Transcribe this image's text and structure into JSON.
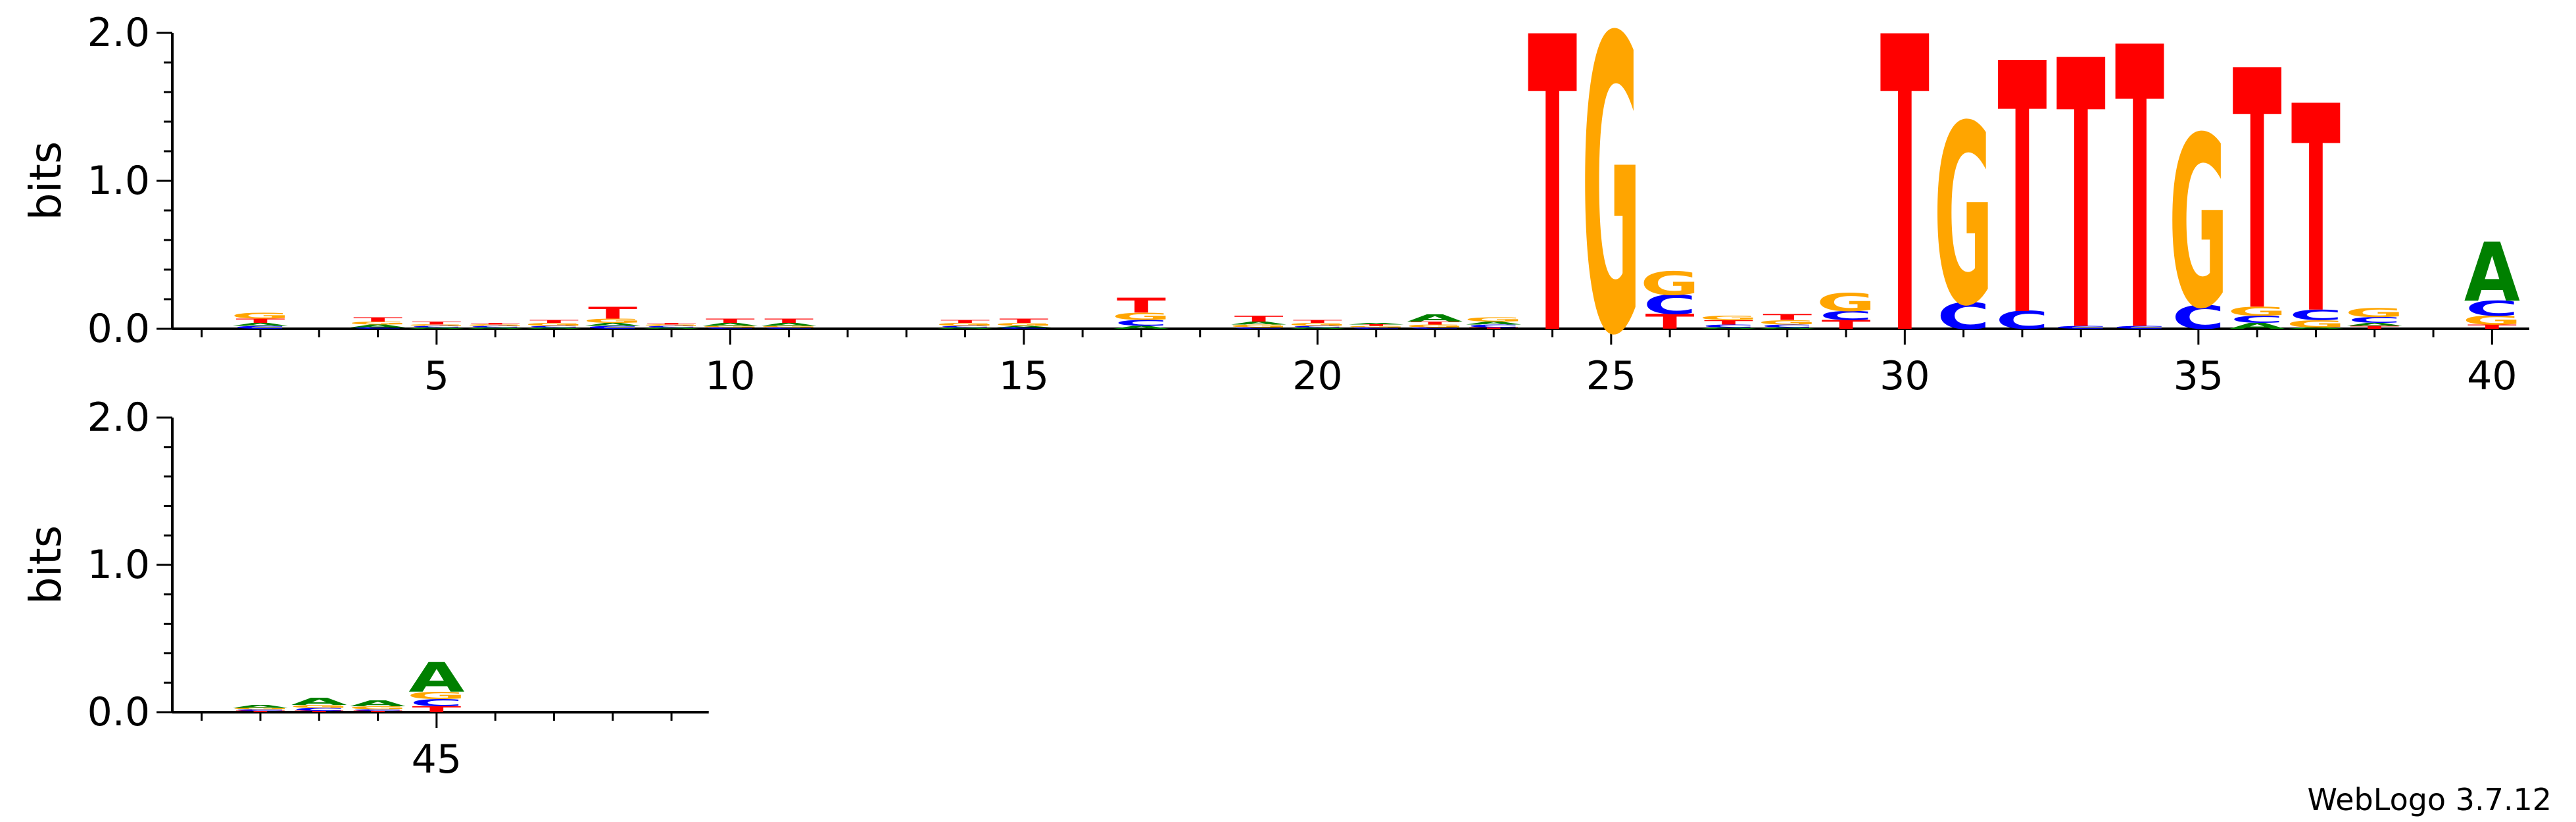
{
  "chart_data": {
    "type": "sequence_logo",
    "ylabel": "bits",
    "ylim": [
      0,
      2
    ],
    "yticks": [
      "0.0",
      "1.0",
      "2.0"
    ],
    "alphabet_colors": {
      "A": "#008000",
      "C": "#0000ff",
      "G": "#ffa500",
      "T": "#ff0000"
    },
    "rows": [
      {
        "first_position": 1,
        "last_position": 40,
        "xtick_labels": [
          "5",
          "10",
          "15",
          "20",
          "25",
          "30",
          "35",
          "40"
        ]
      },
      {
        "first_position": 41,
        "last_position": 49,
        "xtick_labels": [
          "45"
        ]
      }
    ],
    "positions": [
      {
        "pos": 1,
        "letters": []
      },
      {
        "pos": 2,
        "letters": [
          {
            "base": "C",
            "bits": 0.02
          },
          {
            "base": "A",
            "bits": 0.02
          },
          {
            "base": "T",
            "bits": 0.03
          },
          {
            "base": "G",
            "bits": 0.04
          }
        ]
      },
      {
        "pos": 3,
        "letters": []
      },
      {
        "pos": 4,
        "letters": [
          {
            "base": "C",
            "bits": 0.01
          },
          {
            "base": "A",
            "bits": 0.02
          },
          {
            "base": "G",
            "bits": 0.02
          },
          {
            "base": "T",
            "bits": 0.03
          }
        ]
      },
      {
        "pos": 5,
        "letters": [
          {
            "base": "A",
            "bits": 0.01
          },
          {
            "base": "C",
            "bits": 0.01
          },
          {
            "base": "G",
            "bits": 0.01
          },
          {
            "base": "T",
            "bits": 0.02
          }
        ]
      },
      {
        "pos": 6,
        "letters": [
          {
            "base": "A",
            "bits": 0.01
          },
          {
            "base": "C",
            "bits": 0.01
          },
          {
            "base": "G",
            "bits": 0.01
          },
          {
            "base": "T",
            "bits": 0.01
          }
        ]
      },
      {
        "pos": 7,
        "letters": [
          {
            "base": "A",
            "bits": 0.01
          },
          {
            "base": "C",
            "bits": 0.01
          },
          {
            "base": "G",
            "bits": 0.02
          },
          {
            "base": "T",
            "bits": 0.02
          }
        ]
      },
      {
        "pos": 8,
        "letters": [
          {
            "base": "C",
            "bits": 0.02
          },
          {
            "base": "A",
            "bits": 0.02
          },
          {
            "base": "G",
            "bits": 0.03
          },
          {
            "base": "T",
            "bits": 0.08
          }
        ]
      },
      {
        "pos": 9,
        "letters": [
          {
            "base": "A",
            "bits": 0.01
          },
          {
            "base": "C",
            "bits": 0.01
          },
          {
            "base": "G",
            "bits": 0.01
          },
          {
            "base": "T",
            "bits": 0.01
          }
        ]
      },
      {
        "pos": 10,
        "letters": [
          {
            "base": "C",
            "bits": 0.01
          },
          {
            "base": "G",
            "bits": 0.01
          },
          {
            "base": "A",
            "bits": 0.02
          },
          {
            "base": "T",
            "bits": 0.03
          }
        ]
      },
      {
        "pos": 11,
        "letters": [
          {
            "base": "C",
            "bits": 0.01
          },
          {
            "base": "G",
            "bits": 0.01
          },
          {
            "base": "A",
            "bits": 0.02
          },
          {
            "base": "T",
            "bits": 0.03
          }
        ]
      },
      {
        "pos": 12,
        "letters": []
      },
      {
        "pos": 13,
        "letters": []
      },
      {
        "pos": 14,
        "letters": [
          {
            "base": "A",
            "bits": 0.01
          },
          {
            "base": "C",
            "bits": 0.01
          },
          {
            "base": "G",
            "bits": 0.02
          },
          {
            "base": "T",
            "bits": 0.02
          }
        ]
      },
      {
        "pos": 15,
        "letters": [
          {
            "base": "C",
            "bits": 0.01
          },
          {
            "base": "A",
            "bits": 0.01
          },
          {
            "base": "G",
            "bits": 0.02
          },
          {
            "base": "T",
            "bits": 0.03
          }
        ]
      },
      {
        "pos": 16,
        "letters": []
      },
      {
        "pos": 17,
        "letters": [
          {
            "base": "A",
            "bits": 0.02
          },
          {
            "base": "C",
            "bits": 0.04
          },
          {
            "base": "G",
            "bits": 0.05
          },
          {
            "base": "T",
            "bits": 0.1
          }
        ]
      },
      {
        "pos": 18,
        "letters": []
      },
      {
        "pos": 19,
        "letters": [
          {
            "base": "C",
            "bits": 0.01
          },
          {
            "base": "G",
            "bits": 0.02
          },
          {
            "base": "A",
            "bits": 0.02
          },
          {
            "base": "T",
            "bits": 0.04
          }
        ]
      },
      {
        "pos": 20,
        "letters": [
          {
            "base": "A",
            "bits": 0.01
          },
          {
            "base": "C",
            "bits": 0.01
          },
          {
            "base": "G",
            "bits": 0.02
          },
          {
            "base": "T",
            "bits": 0.02
          }
        ]
      },
      {
        "pos": 21,
        "letters": [
          {
            "base": "C",
            "bits": 0.01
          },
          {
            "base": "G",
            "bits": 0.01
          },
          {
            "base": "T",
            "bits": 0.01
          },
          {
            "base": "A",
            "bits": 0.01
          }
        ]
      },
      {
        "pos": 22,
        "letters": [
          {
            "base": "C",
            "bits": 0.01
          },
          {
            "base": "G",
            "bits": 0.02
          },
          {
            "base": "T",
            "bits": 0.02
          },
          {
            "base": "A",
            "bits": 0.05
          }
        ]
      },
      {
        "pos": 23,
        "letters": [
          {
            "base": "T",
            "bits": 0.01
          },
          {
            "base": "C",
            "bits": 0.02
          },
          {
            "base": "A",
            "bits": 0.02
          },
          {
            "base": "G",
            "bits": 0.03
          }
        ]
      },
      {
        "pos": 24,
        "letters": [
          {
            "base": "T",
            "bits": 2.0
          }
        ]
      },
      {
        "pos": 25,
        "letters": [
          {
            "base": "G",
            "bits": 2.0
          }
        ]
      },
      {
        "pos": 26,
        "letters": [
          {
            "base": "T",
            "bits": 0.1
          },
          {
            "base": "C",
            "bits": 0.13
          },
          {
            "base": "G",
            "bits": 0.16
          }
        ]
      },
      {
        "pos": 27,
        "letters": [
          {
            "base": "A",
            "bits": 0.01
          },
          {
            "base": "C",
            "bits": 0.02
          },
          {
            "base": "T",
            "bits": 0.03
          },
          {
            "base": "G",
            "bits": 0.03
          }
        ]
      },
      {
        "pos": 28,
        "letters": [
          {
            "base": "A",
            "bits": 0.01
          },
          {
            "base": "C",
            "bits": 0.02
          },
          {
            "base": "G",
            "bits": 0.03
          },
          {
            "base": "T",
            "bits": 0.04
          }
        ]
      },
      {
        "pos": 29,
        "letters": [
          {
            "base": "T",
            "bits": 0.06
          },
          {
            "base": "C",
            "bits": 0.06
          },
          {
            "base": "G",
            "bits": 0.12
          }
        ]
      },
      {
        "pos": 30,
        "letters": [
          {
            "base": "T",
            "bits": 2.0
          }
        ]
      },
      {
        "pos": 31,
        "letters": [
          {
            "base": "C",
            "bits": 0.18
          },
          {
            "base": "G",
            "bits": 1.22
          }
        ]
      },
      {
        "pos": 32,
        "letters": [
          {
            "base": "C",
            "bits": 0.12
          },
          {
            "base": "T",
            "bits": 1.7
          }
        ]
      },
      {
        "pos": 33,
        "letters": [
          {
            "base": "C",
            "bits": 0.02
          },
          {
            "base": "T",
            "bits": 1.82
          }
        ]
      },
      {
        "pos": 34,
        "letters": [
          {
            "base": "C",
            "bits": 0.02
          },
          {
            "base": "T",
            "bits": 1.91
          }
        ]
      },
      {
        "pos": 35,
        "letters": [
          {
            "base": "C",
            "bits": 0.16
          },
          {
            "base": "G",
            "bits": 1.16
          }
        ]
      },
      {
        "pos": 36,
        "letters": [
          {
            "base": "A",
            "bits": 0.04
          },
          {
            "base": "C",
            "bits": 0.05
          },
          {
            "base": "G",
            "bits": 0.06
          },
          {
            "base": "T",
            "bits": 1.62
          }
        ]
      },
      {
        "pos": 37,
        "letters": [
          {
            "base": "A",
            "bits": 0.01
          },
          {
            "base": "G",
            "bits": 0.05
          },
          {
            "base": "C",
            "bits": 0.07
          },
          {
            "base": "T",
            "bits": 1.4
          }
        ]
      },
      {
        "pos": 38,
        "letters": [
          {
            "base": "T",
            "bits": 0.02
          },
          {
            "base": "A",
            "bits": 0.02
          },
          {
            "base": "C",
            "bits": 0.04
          },
          {
            "base": "G",
            "bits": 0.06
          }
        ]
      },
      {
        "pos": 39,
        "letters": []
      },
      {
        "pos": 40,
        "letters": [
          {
            "base": "T",
            "bits": 0.03
          },
          {
            "base": "G",
            "bits": 0.06
          },
          {
            "base": "C",
            "bits": 0.1
          },
          {
            "base": "A",
            "bits": 0.4
          }
        ]
      },
      {
        "pos": 41,
        "letters": []
      },
      {
        "pos": 42,
        "letters": [
          {
            "base": "T",
            "bits": 0.01
          },
          {
            "base": "C",
            "bits": 0.01
          },
          {
            "base": "G",
            "bits": 0.01
          },
          {
            "base": "A",
            "bits": 0.02
          }
        ]
      },
      {
        "pos": 43,
        "letters": [
          {
            "base": "T",
            "bits": 0.01
          },
          {
            "base": "C",
            "bits": 0.02
          },
          {
            "base": "G",
            "bits": 0.02
          },
          {
            "base": "A",
            "bits": 0.05
          }
        ]
      },
      {
        "pos": 44,
        "letters": [
          {
            "base": "T",
            "bits": 0.01
          },
          {
            "base": "C",
            "bits": 0.01
          },
          {
            "base": "G",
            "bits": 0.02
          },
          {
            "base": "A",
            "bits": 0.04
          }
        ]
      },
      {
        "pos": 45,
        "letters": [
          {
            "base": "T",
            "bits": 0.04
          },
          {
            "base": "C",
            "bits": 0.05
          },
          {
            "base": "G",
            "bits": 0.05
          },
          {
            "base": "A",
            "bits": 0.2
          }
        ]
      },
      {
        "pos": 46,
        "letters": []
      },
      {
        "pos": 47,
        "letters": []
      },
      {
        "pos": 48,
        "letters": []
      },
      {
        "pos": 49,
        "letters": []
      }
    ]
  },
  "footer": "WebLogo 3.7.12"
}
